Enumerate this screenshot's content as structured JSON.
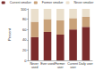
{
  "chart_data": {
    "type": "bar",
    "stacked": true,
    "y_label": "Percent",
    "categories": [
      "Never used",
      "Ever used",
      "Former user",
      "Current user",
      "Daily user"
    ],
    "series": [
      {
        "name": "Current smoker",
        "color": "#7b2c2c",
        "values": [
          45,
          55,
          50,
          60,
          65
        ]
      },
      {
        "name": "Former smoker",
        "color": "#c9a27a",
        "values": [
          30,
          25,
          28,
          22,
          20
        ]
      },
      {
        "name": "Never smoker",
        "color": "#eadfcc",
        "values": [
          25,
          20,
          22,
          18,
          15
        ]
      }
    ],
    "ylim": [
      0,
      100
    ],
    "yticks": [
      0,
      20,
      40,
      60,
      80,
      100
    ],
    "grid": false,
    "legend": "top"
  }
}
